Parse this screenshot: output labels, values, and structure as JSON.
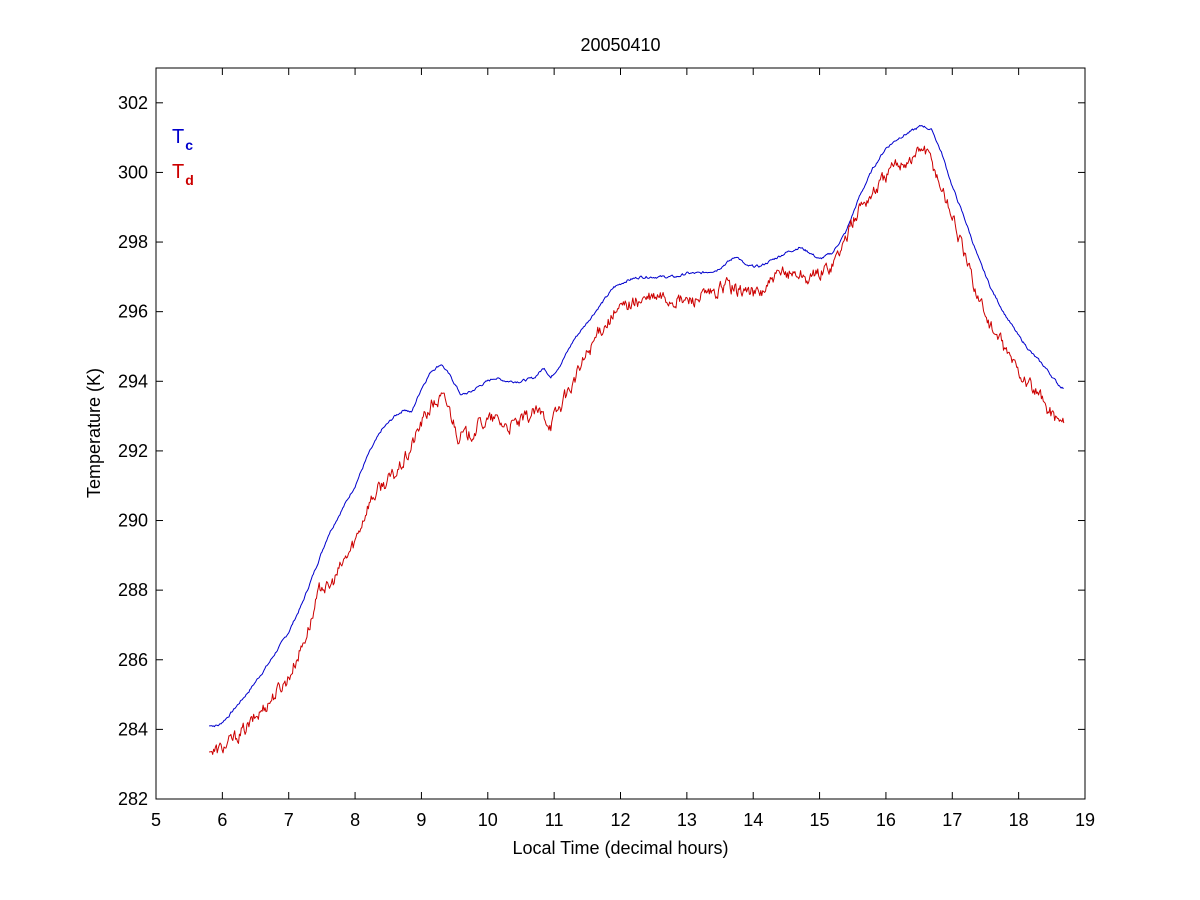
{
  "chart_data": {
    "type": "line",
    "title": "20050410",
    "xlabel": "Local Time (decimal hours)",
    "ylabel": "Temperature (K)",
    "xlim": [
      5,
      19
    ],
    "ylim": [
      282,
      303
    ],
    "xticks": [
      5,
      6,
      7,
      8,
      9,
      10,
      11,
      12,
      13,
      14,
      15,
      16,
      17,
      18,
      19
    ],
    "yticks": [
      282,
      284,
      286,
      288,
      290,
      292,
      294,
      296,
      298,
      300,
      302
    ],
    "grid": false,
    "legend": {
      "placement": "top-left",
      "entries": [
        {
          "main": "T",
          "sub": "c",
          "color": "#0000cc"
        },
        {
          "main": "T",
          "sub": "d",
          "color": "#cc0000"
        }
      ]
    },
    "series": [
      {
        "color": "#0000cc",
        "noise": 0.04,
        "points": [
          [
            5.8,
            284.1
          ],
          [
            5.95,
            284.12
          ],
          [
            6.1,
            284.4
          ],
          [
            6.4,
            285.1
          ],
          [
            6.7,
            285.9
          ],
          [
            7.0,
            286.8
          ],
          [
            7.2,
            287.6
          ],
          [
            7.4,
            288.6
          ],
          [
            7.6,
            289.6
          ],
          [
            7.8,
            290.3
          ],
          [
            8.0,
            291.0
          ],
          [
            8.2,
            291.9
          ],
          [
            8.4,
            292.6
          ],
          [
            8.6,
            293.0
          ],
          [
            8.75,
            293.2
          ],
          [
            8.85,
            293.1
          ],
          [
            9.0,
            293.8
          ],
          [
            9.15,
            294.3
          ],
          [
            9.3,
            294.5
          ],
          [
            9.45,
            294.1
          ],
          [
            9.6,
            293.6
          ],
          [
            9.75,
            293.7
          ],
          [
            9.9,
            293.9
          ],
          [
            10.1,
            294.1
          ],
          [
            10.3,
            294.0
          ],
          [
            10.5,
            294.0
          ],
          [
            10.7,
            294.1
          ],
          [
            10.85,
            294.4
          ],
          [
            10.95,
            294.1
          ],
          [
            11.1,
            294.5
          ],
          [
            11.3,
            295.2
          ],
          [
            11.5,
            295.7
          ],
          [
            11.7,
            296.2
          ],
          [
            11.9,
            296.7
          ],
          [
            12.1,
            296.9
          ],
          [
            12.3,
            297.0
          ],
          [
            12.6,
            297.0
          ],
          [
            12.85,
            297.0
          ],
          [
            13.0,
            297.1
          ],
          [
            13.2,
            297.1
          ],
          [
            13.45,
            297.2
          ],
          [
            13.6,
            297.4
          ],
          [
            13.75,
            297.6
          ],
          [
            13.9,
            297.3
          ],
          [
            14.1,
            297.3
          ],
          [
            14.3,
            297.5
          ],
          [
            14.5,
            297.7
          ],
          [
            14.7,
            297.85
          ],
          [
            14.85,
            297.7
          ],
          [
            15.0,
            297.5
          ],
          [
            15.2,
            297.7
          ],
          [
            15.4,
            298.3
          ],
          [
            15.6,
            299.3
          ],
          [
            15.8,
            300.1
          ],
          [
            16.0,
            300.7
          ],
          [
            16.2,
            301.0
          ],
          [
            16.4,
            301.2
          ],
          [
            16.55,
            301.35
          ],
          [
            16.7,
            301.2
          ],
          [
            16.85,
            300.5
          ],
          [
            17.0,
            299.6
          ],
          [
            17.2,
            298.6
          ],
          [
            17.4,
            297.5
          ],
          [
            17.6,
            296.6
          ],
          [
            17.8,
            295.9
          ],
          [
            18.0,
            295.3
          ],
          [
            18.2,
            294.8
          ],
          [
            18.4,
            294.4
          ],
          [
            18.6,
            293.9
          ],
          [
            18.68,
            293.8
          ]
        ]
      },
      {
        "color": "#cc0000",
        "noise": 0.22,
        "points": [
          [
            5.8,
            283.35
          ],
          [
            5.95,
            283.4
          ],
          [
            6.1,
            283.6
          ],
          [
            6.4,
            284.1
          ],
          [
            6.7,
            284.8
          ],
          [
            7.0,
            285.5
          ],
          [
            7.2,
            286.4
          ],
          [
            7.35,
            287.2
          ],
          [
            7.5,
            288.2
          ],
          [
            7.6,
            288.0
          ],
          [
            7.8,
            288.7
          ],
          [
            8.0,
            289.4
          ],
          [
            8.2,
            290.5
          ],
          [
            8.4,
            291.0
          ],
          [
            8.6,
            291.3
          ],
          [
            8.8,
            291.9
          ],
          [
            9.0,
            292.8
          ],
          [
            9.15,
            293.3
          ],
          [
            9.3,
            293.5
          ],
          [
            9.4,
            293.3
          ],
          [
            9.55,
            292.5
          ],
          [
            9.7,
            292.4
          ],
          [
            9.9,
            292.8
          ],
          [
            10.1,
            292.9
          ],
          [
            10.3,
            292.7
          ],
          [
            10.5,
            292.8
          ],
          [
            10.7,
            293.1
          ],
          [
            10.85,
            293.0
          ],
          [
            10.95,
            292.8
          ],
          [
            11.1,
            293.3
          ],
          [
            11.3,
            294.0
          ],
          [
            11.5,
            294.8
          ],
          [
            11.7,
            295.5
          ],
          [
            11.9,
            295.9
          ],
          [
            12.1,
            296.2
          ],
          [
            12.3,
            296.3
          ],
          [
            12.6,
            296.4
          ],
          [
            12.85,
            296.3
          ],
          [
            13.0,
            296.3
          ],
          [
            13.2,
            296.4
          ],
          [
            13.45,
            296.5
          ],
          [
            13.6,
            296.8
          ],
          [
            13.75,
            296.6
          ],
          [
            13.9,
            296.6
          ],
          [
            14.1,
            296.5
          ],
          [
            14.3,
            296.9
          ],
          [
            14.5,
            297.1
          ],
          [
            14.7,
            297.1
          ],
          [
            14.85,
            296.9
          ],
          [
            15.0,
            297.1
          ],
          [
            15.2,
            297.4
          ],
          [
            15.4,
            298.1
          ],
          [
            15.6,
            299.0
          ],
          [
            15.8,
            299.4
          ],
          [
            16.0,
            299.9
          ],
          [
            16.2,
            300.3
          ],
          [
            16.4,
            300.4
          ],
          [
            16.55,
            300.75
          ],
          [
            16.7,
            300.3
          ],
          [
            16.85,
            299.5
          ],
          [
            17.0,
            298.8
          ],
          [
            17.2,
            297.5
          ],
          [
            17.4,
            296.4
          ],
          [
            17.6,
            295.5
          ],
          [
            17.8,
            294.9
          ],
          [
            18.0,
            294.3
          ],
          [
            18.2,
            293.8
          ],
          [
            18.4,
            293.3
          ],
          [
            18.6,
            292.9
          ],
          [
            18.68,
            292.8
          ]
        ]
      }
    ]
  }
}
